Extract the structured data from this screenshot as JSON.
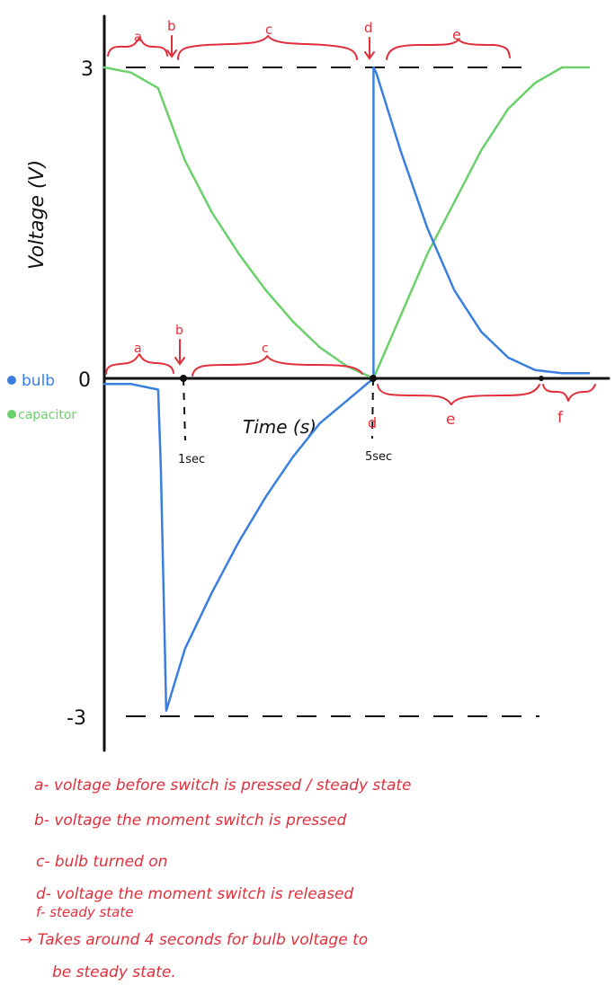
{
  "chart_data": {
    "type": "line",
    "title": "",
    "xlabel": "Time (s)",
    "ylabel": "Voltage (V)",
    "xlim": [
      0,
      9
    ],
    "ylim": [
      -3,
      3
    ],
    "y_ticks": [
      {
        "value": 3,
        "label": "3"
      },
      {
        "value": 0,
        "label": "0"
      },
      {
        "value": -3,
        "label": "-3"
      }
    ],
    "x_annotations": [
      {
        "value": 1,
        "label": "1sec"
      },
      {
        "value": 5,
        "label": "5sec"
      }
    ],
    "legend": {
      "placement": "left",
      "entries": [
        {
          "label": "bulb",
          "color": "#3a7fe0"
        },
        {
          "label": "capacitor",
          "color": "#6bd06b"
        }
      ]
    },
    "series": [
      {
        "name": "bulb",
        "color": "#3a7fe0",
        "x": [
          0,
          0.5,
          1.0,
          1.05,
          1.15,
          1.5,
          2.0,
          2.5,
          3.0,
          3.5,
          4.0,
          4.5,
          5.0,
          5.0,
          5.05,
          5.5,
          6.0,
          6.5,
          7.0,
          7.5,
          8.0,
          8.5,
          9.0
        ],
        "y": [
          -0.05,
          -0.05,
          -0.1,
          -0.8,
          -2.95,
          -2.4,
          -1.9,
          -1.45,
          -1.05,
          -0.7,
          -0.4,
          -0.2,
          0,
          3.0,
          2.95,
          2.2,
          1.45,
          0.85,
          0.45,
          0.2,
          0.08,
          0.05,
          0.05
        ]
      },
      {
        "name": "capacitor",
        "color": "#6bd06b",
        "x": [
          0,
          0.5,
          1.0,
          1.5,
          2.0,
          2.5,
          3.0,
          3.5,
          4.0,
          4.5,
          5.0,
          5.5,
          6.0,
          6.5,
          7.0,
          7.5,
          8.0,
          8.5,
          9.0
        ],
        "y": [
          3.0,
          2.95,
          2.8,
          2.1,
          1.6,
          1.2,
          0.85,
          0.55,
          0.3,
          0.12,
          0,
          0.6,
          1.2,
          1.7,
          2.2,
          2.6,
          2.85,
          3.0,
          3.0
        ]
      }
    ],
    "phase_labels_top": [
      "a",
      "b",
      "c",
      "d",
      "e"
    ],
    "phase_labels_bottom": [
      "a",
      "b",
      "c",
      "d",
      "e",
      "f"
    ],
    "notes": [
      "a- voltage before switch is pressed / steady state",
      "b- voltage the moment switch is pressed",
      "c- bulb turned on",
      "d- voltage the moment switch is released",
      "f- steady state",
      "→ Takes around 4 seconds for bulb voltage to",
      "be steady state."
    ]
  }
}
